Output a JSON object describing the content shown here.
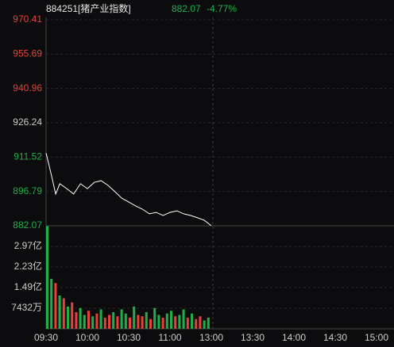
{
  "header": {
    "code": "884251[猪产业指数]",
    "price": 882.07,
    "change": "-4.77%"
  },
  "chart_data": [
    {
      "type": "line",
      "color": "#ffffff",
      "ylim": [
        882.07,
        970.41
      ],
      "yticks": [
        970.41,
        955.69,
        940.96,
        926.24,
        911.52,
        896.79,
        882.07
      ],
      "ytick_colors": [
        "#e8413a",
        "#e8413a",
        "#e8413a",
        "#cccccc",
        "#1fb04a",
        "#1fb04a",
        "#1fb04a"
      ],
      "xticks": [
        "09:30",
        "10:00",
        "10:30",
        "11:00",
        "13:00",
        "13:30",
        "14:00",
        "14:30",
        "15:00"
      ],
      "x": [
        "09:30",
        "09:34",
        "09:37",
        "09:40",
        "09:45",
        "09:50",
        "09:55",
        "10:00",
        "10:05",
        "10:10",
        "10:15",
        "10:20",
        "10:25",
        "10:30",
        "10:35",
        "10:40",
        "10:45",
        "10:50",
        "10:55",
        "11:00",
        "11:05",
        "11:10",
        "11:15",
        "11:20",
        "11:25",
        "11:30"
      ],
      "values": [
        913.3,
        903.5,
        895.7,
        900.1,
        898.0,
        895.7,
        900.1,
        898.0,
        900.7,
        901.4,
        899.4,
        896.7,
        893.9,
        892.3,
        890.6,
        889.2,
        887.2,
        887.8,
        886.5,
        887.8,
        888.5,
        887.2,
        886.5,
        885.5,
        884.4,
        882.07
      ]
    },
    {
      "type": "bar",
      "ylim": [
        0,
        371500000
      ],
      "yticks": [
        {
          "value": 297000000,
          "label": "2.97亿"
        },
        {
          "value": 223000000,
          "label": "2.23亿"
        },
        {
          "value": 149000000,
          "label": "1.49亿"
        },
        {
          "value": 74320000,
          "label": "7432万"
        }
      ],
      "x": [
        "09:30",
        "09:33",
        "09:36",
        "09:39",
        "09:42",
        "09:45",
        "09:48",
        "09:51",
        "09:54",
        "09:57",
        "10:00",
        "10:03",
        "10:06",
        "10:09",
        "10:12",
        "10:15",
        "10:18",
        "10:21",
        "10:24",
        "10:27",
        "10:30",
        "10:33",
        "10:36",
        "10:39",
        "10:42",
        "10:45",
        "10:48",
        "10:51",
        "10:54",
        "10:57",
        "11:00",
        "11:03",
        "11:06",
        "11:09",
        "11:12",
        "11:15",
        "11:18",
        "11:21",
        "11:24",
        "11:27"
      ],
      "values": [
        370000000,
        180000000,
        165000000,
        120000000,
        110000000,
        80000000,
        95000000,
        60000000,
        75000000,
        50000000,
        65000000,
        45000000,
        55000000,
        70000000,
        40000000,
        50000000,
        60000000,
        45000000,
        70000000,
        55000000,
        40000000,
        80000000,
        50000000,
        45000000,
        60000000,
        35000000,
        75000000,
        50000000,
        40000000,
        55000000,
        65000000,
        45000000,
        50000000,
        70000000,
        40000000,
        55000000,
        35000000,
        45000000,
        30000000,
        40000000
      ],
      "bar_colors": [
        "#1fb04a",
        "#1fb04a",
        "#e8413a",
        "#1fb04a",
        "#e8413a",
        "#1fb04a",
        "#e8413a",
        "#e8413a",
        "#1fb04a",
        "#1fb04a",
        "#e8413a",
        "#1fb04a",
        "#e8413a",
        "#1fb04a",
        "#e8413a",
        "#e8413a",
        "#1fb04a",
        "#e8413a",
        "#1fb04a",
        "#1fb04a",
        "#e8413a",
        "#1fb04a",
        "#e8413a",
        "#e8413a",
        "#1fb04a",
        "#e8413a",
        "#1fb04a",
        "#1fb04a",
        "#e8413a",
        "#1fb04a",
        "#1fb04a",
        "#e8413a",
        "#1fb04a",
        "#1fb04a",
        "#e8413a",
        "#1fb04a",
        "#e8413a",
        "#e8413a",
        "#1fb04a",
        "#1fb04a"
      ]
    }
  ]
}
